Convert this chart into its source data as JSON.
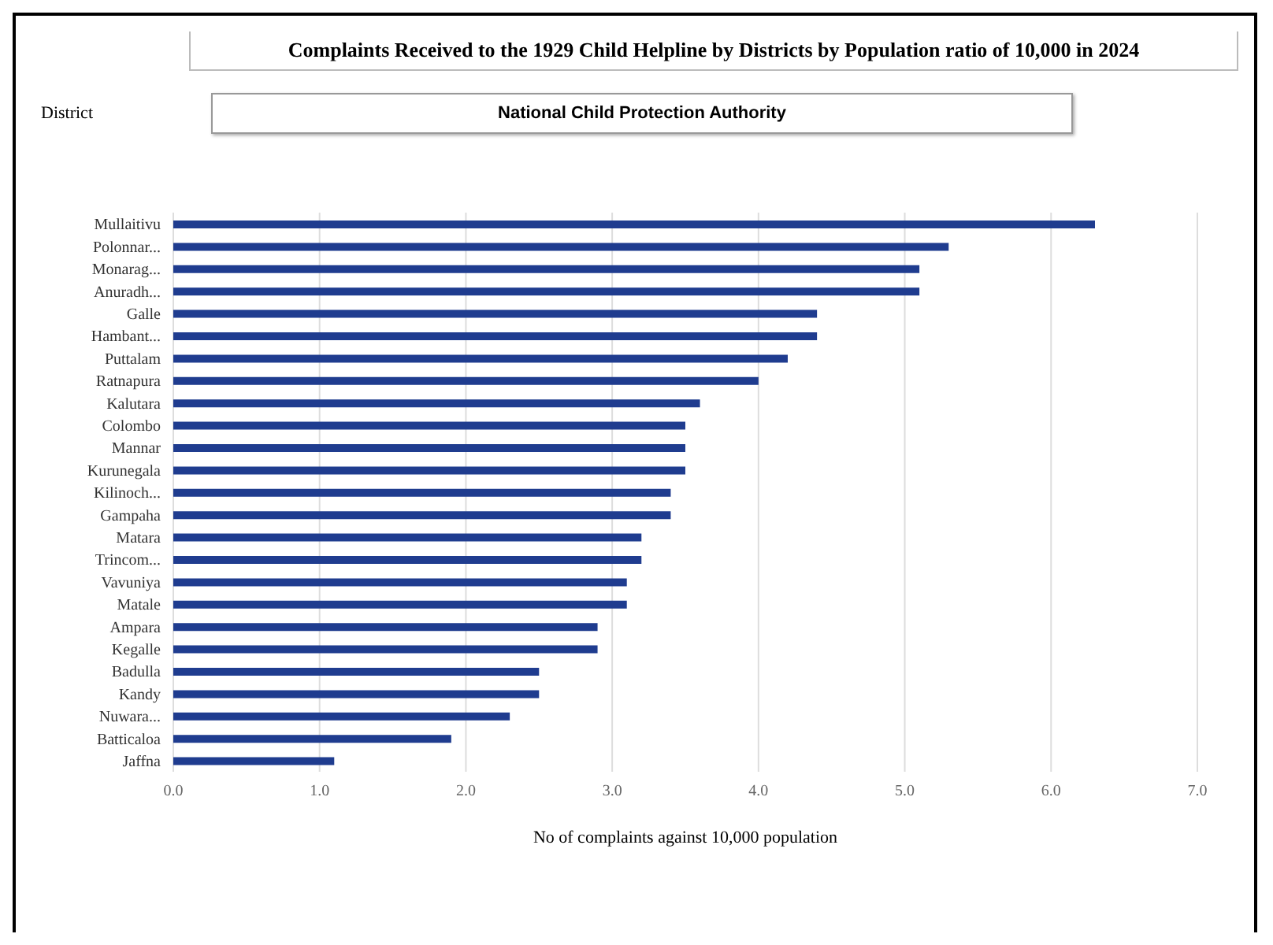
{
  "chart_data": {
    "type": "bar",
    "orientation": "horizontal",
    "title": "Complaints Received to the 1929 Child Helpline by Districts by Population ratio of 10,000 in 2024",
    "subtitle": "National Child Protection Authority",
    "annotations": [
      "District"
    ],
    "xlabel": "No of complaints against 10,000 population",
    "categories": [
      "Mullaitivu",
      "Polonnar...",
      "Monarag...",
      "Anuradh...",
      "Galle",
      "Hambant...",
      "Puttalam",
      "Ratnapura",
      "Kalutara",
      "Colombo",
      "Mannar",
      "Kurunegala",
      "Kilinoch...",
      "Gampaha",
      "Matara",
      "Trincom...",
      "Vavuniya",
      "Matale",
      "Ampara",
      "Kegalle",
      "Badulla",
      "Kandy",
      "Nuwara...",
      "Batticaloa",
      "Jaffna"
    ],
    "values": [
      6.3,
      5.3,
      5.1,
      5.1,
      4.4,
      4.4,
      4.2,
      4.0,
      3.6,
      3.5,
      3.5,
      3.5,
      3.4,
      3.4,
      3.2,
      3.2,
      3.1,
      3.1,
      2.9,
      2.9,
      2.5,
      2.5,
      2.3,
      1.9,
      1.1
    ],
    "color": "#1f3c8f",
    "xlim": [
      0,
      7
    ],
    "xticks": [
      {
        "value": 0,
        "label": "0.0"
      },
      {
        "value": 1,
        "label": "1.0"
      },
      {
        "value": 2,
        "label": "2.0"
      },
      {
        "value": 3,
        "label": "3.0"
      },
      {
        "value": 4,
        "label": "4.0"
      },
      {
        "value": 5,
        "label": "5.0"
      },
      {
        "value": 6,
        "label": "6.0"
      },
      {
        "value": 7,
        "label": "7.0"
      }
    ],
    "grid": "x",
    "legend": false
  }
}
